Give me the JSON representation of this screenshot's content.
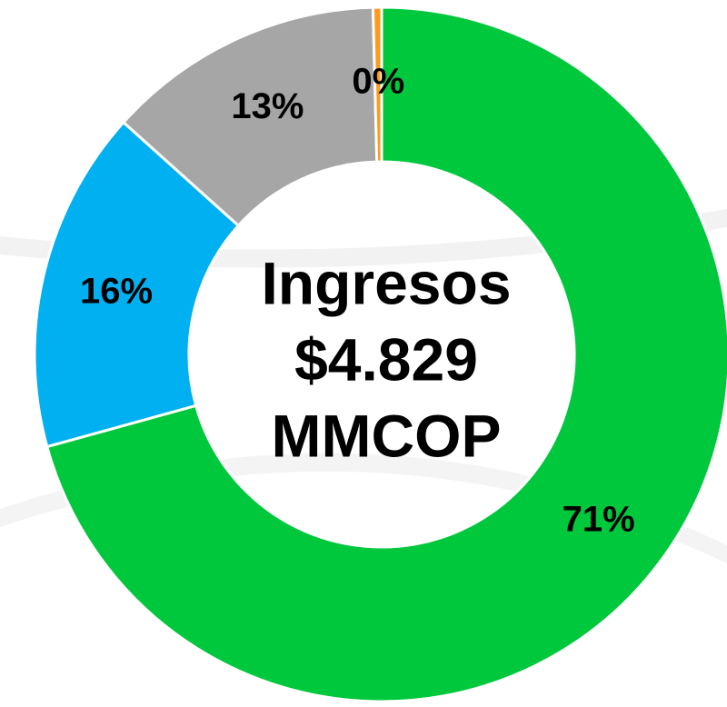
{
  "chart_data": {
    "type": "donut",
    "center_label": [
      "Ingresos",
      "$4.829",
      "MMCOP"
    ],
    "categories": [
      null,
      null,
      null,
      null
    ],
    "values": [
      71,
      16,
      13,
      0.4
    ],
    "value_labels": [
      "71%",
      "16%",
      "13%",
      "0%"
    ],
    "colors": [
      "#00c83c",
      "#00b0f0",
      "#a6a6a6",
      "#ff9a1a"
    ],
    "start_angle": 0,
    "direction": "clockwise"
  }
}
